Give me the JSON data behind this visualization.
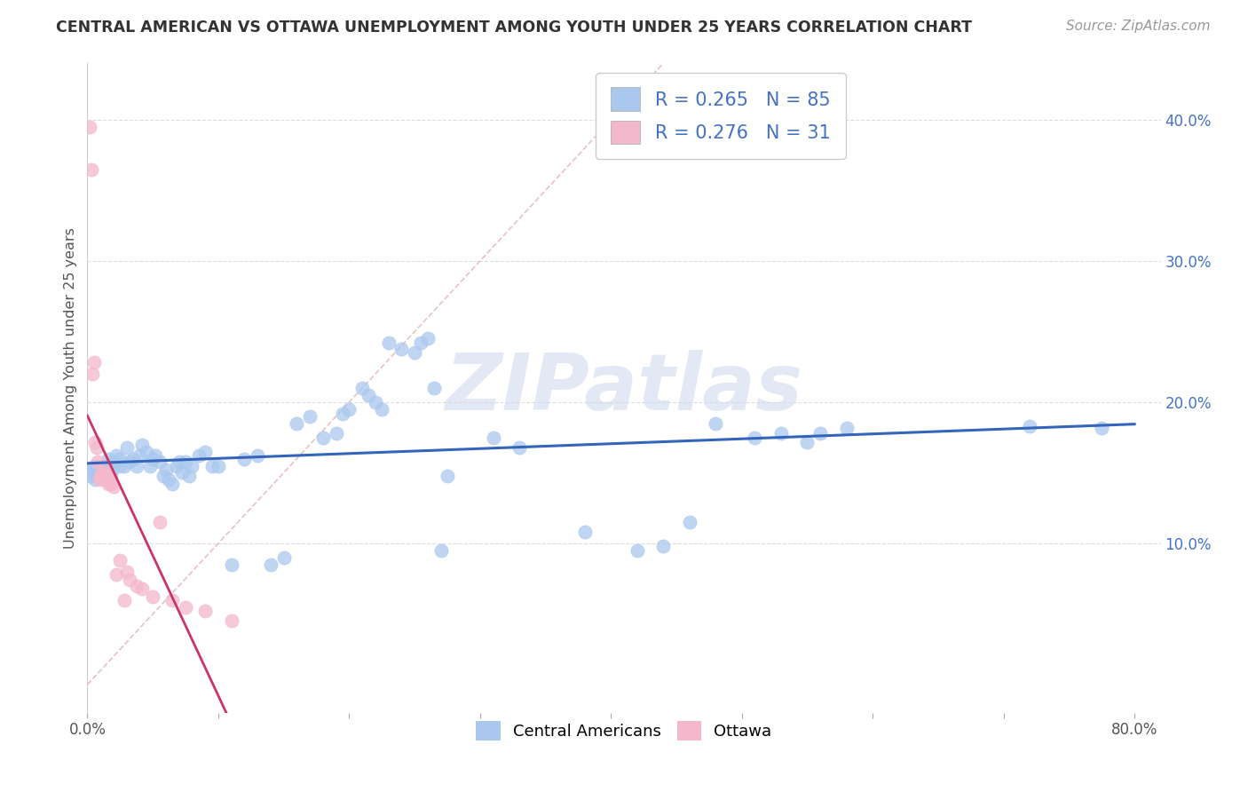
{
  "title": "CENTRAL AMERICAN VS OTTAWA UNEMPLOYMENT AMONG YOUTH UNDER 25 YEARS CORRELATION CHART",
  "source": "Source: ZipAtlas.com",
  "ylabel": "Unemployment Among Youth under 25 years",
  "right_ytick_vals": [
    0.1,
    0.2,
    0.3,
    0.4
  ],
  "right_ytick_labels": [
    "10.0%",
    "20.0%",
    "30.0%",
    "40.0%"
  ],
  "xtick_vals": [
    0.0,
    0.1,
    0.2,
    0.3,
    0.4,
    0.5,
    0.6,
    0.7,
    0.8
  ],
  "xtick_labels": [
    "0.0%",
    "",
    "",
    "",
    "",
    "",
    "",
    "",
    "80.0%"
  ],
  "xlim": [
    0.0,
    0.82
  ],
  "ylim": [
    -0.02,
    0.44
  ],
  "legend_r1": "0.265",
  "legend_n1": "85",
  "legend_r2": "0.276",
  "legend_n2": "31",
  "blue_scatter_color": "#aac8ee",
  "pink_scatter_color": "#f4b8cc",
  "blue_line_color": "#3366bb",
  "pink_line_color": "#cc3366",
  "diagonal_color": "#e8c0c8",
  "grid_color": "#dddddd",
  "watermark": "ZIPatlas",
  "watermark_color": "#ccd8ec",
  "label_ca": "Central Americans",
  "label_ot": "Ottawa",
  "ca_x": [
    0.002,
    0.003,
    0.004,
    0.005,
    0.006,
    0.007,
    0.008,
    0.009,
    0.01,
    0.011,
    0.012,
    0.013,
    0.014,
    0.015,
    0.016,
    0.017,
    0.018,
    0.019,
    0.02,
    0.022,
    0.024,
    0.025,
    0.028,
    0.03,
    0.032,
    0.035,
    0.038,
    0.04,
    0.042,
    0.045,
    0.048,
    0.05,
    0.052,
    0.055,
    0.058,
    0.06,
    0.062,
    0.065,
    0.068,
    0.07,
    0.072,
    0.075,
    0.078,
    0.08,
    0.085,
    0.09,
    0.095,
    0.1,
    0.11,
    0.12,
    0.13,
    0.14,
    0.15,
    0.16,
    0.17,
    0.18,
    0.19,
    0.195,
    0.2,
    0.21,
    0.215,
    0.22,
    0.225,
    0.23,
    0.24,
    0.25,
    0.255,
    0.26,
    0.265,
    0.27,
    0.275,
    0.31,
    0.33,
    0.38,
    0.42,
    0.44,
    0.46,
    0.48,
    0.51,
    0.53,
    0.55,
    0.56,
    0.58,
    0.72,
    0.775
  ],
  "ca_y": [
    0.148,
    0.152,
    0.15,
    0.155,
    0.145,
    0.148,
    0.155,
    0.15,
    0.152,
    0.148,
    0.15,
    0.155,
    0.148,
    0.152,
    0.16,
    0.155,
    0.148,
    0.152,
    0.158,
    0.162,
    0.155,
    0.16,
    0.155,
    0.168,
    0.158,
    0.16,
    0.155,
    0.162,
    0.17,
    0.165,
    0.155,
    0.16,
    0.162,
    0.158,
    0.148,
    0.152,
    0.145,
    0.142,
    0.155,
    0.158,
    0.15,
    0.158,
    0.148,
    0.155,
    0.162,
    0.165,
    0.155,
    0.155,
    0.085,
    0.16,
    0.162,
    0.085,
    0.09,
    0.185,
    0.19,
    0.175,
    0.178,
    0.192,
    0.195,
    0.21,
    0.205,
    0.2,
    0.195,
    0.242,
    0.238,
    0.235,
    0.242,
    0.245,
    0.21,
    0.095,
    0.148,
    0.175,
    0.168,
    0.108,
    0.095,
    0.098,
    0.115,
    0.185,
    0.175,
    0.178,
    0.172,
    0.178,
    0.182,
    0.183,
    0.182
  ],
  "ot_x": [
    0.002,
    0.003,
    0.004,
    0.005,
    0.006,
    0.007,
    0.008,
    0.009,
    0.01,
    0.011,
    0.012,
    0.013,
    0.014,
    0.015,
    0.016,
    0.017,
    0.018,
    0.02,
    0.022,
    0.025,
    0.028,
    0.03,
    0.032,
    0.038,
    0.042,
    0.05,
    0.055,
    0.065,
    0.075,
    0.09,
    0.11
  ],
  "ot_y": [
    0.395,
    0.365,
    0.22,
    0.228,
    0.172,
    0.168,
    0.158,
    0.145,
    0.148,
    0.15,
    0.148,
    0.145,
    0.15,
    0.145,
    0.142,
    0.148,
    0.142,
    0.14,
    0.078,
    0.088,
    0.06,
    0.08,
    0.074,
    0.07,
    0.068,
    0.062,
    0.115,
    0.06,
    0.055,
    0.052,
    0.045
  ]
}
